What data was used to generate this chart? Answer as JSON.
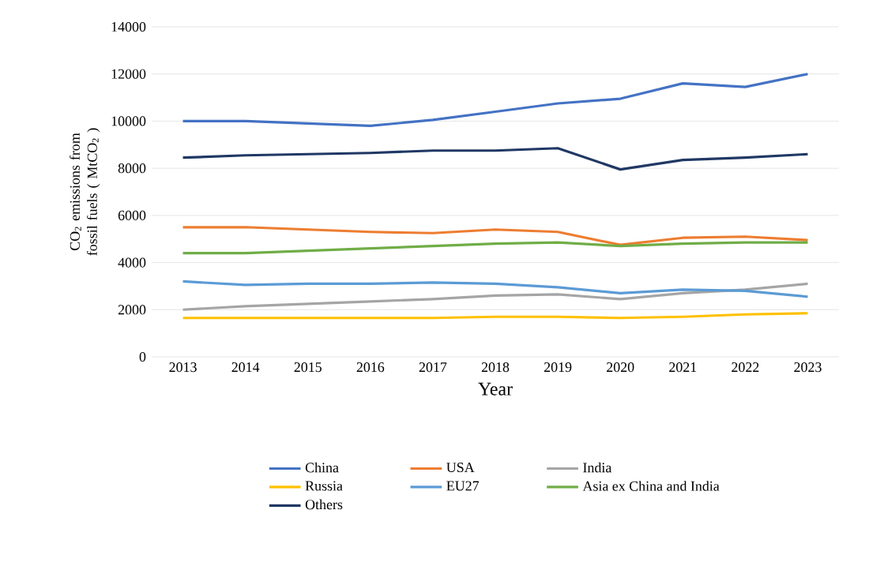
{
  "chart_data": {
    "type": "line",
    "xlabel": "Year",
    "ylabel": "CO$_{2}$ emissions from fossil fuels ( MtCO$_{2}$ )",
    "categories": [
      "2013",
      "2014",
      "2015",
      "2016",
      "2017",
      "2018",
      "2019",
      "2020",
      "2021",
      "2022",
      "2023"
    ],
    "ylim": [
      0,
      14000
    ],
    "yticks": [
      0,
      2000,
      4000,
      6000,
      8000,
      10000,
      12000,
      14000
    ],
    "grid": "y",
    "legend": "bottom",
    "marker": "none",
    "line_style": "solid",
    "series": [
      {
        "name": "China",
        "color": "#4472c4",
        "values": [
          10000,
          10000,
          9900,
          9800,
          10050,
          10400,
          10750,
          10950,
          11600,
          11450,
          12000
        ]
      },
      {
        "name": "USA",
        "color": "#ed7d31",
        "values": [
          5500,
          5500,
          5400,
          5300,
          5250,
          5400,
          5300,
          4750,
          5050,
          5100,
          4950
        ]
      },
      {
        "name": "India",
        "color": "#a5a5a5",
        "values": [
          2000,
          2150,
          2250,
          2350,
          2450,
          2600,
          2650,
          2450,
          2700,
          2850,
          3100
        ]
      },
      {
        "name": "Russia",
        "color": "#ffc000",
        "values": [
          1650,
          1650,
          1650,
          1650,
          1650,
          1700,
          1700,
          1650,
          1700,
          1800,
          1850
        ]
      },
      {
        "name": "EU27",
        "color": "#5b9bd5",
        "values": [
          3200,
          3050,
          3100,
          3100,
          3150,
          3100,
          2950,
          2700,
          2850,
          2800,
          2550
        ]
      },
      {
        "name": "Asia ex China and India",
        "color": "#70ad47",
        "values": [
          4400,
          4400,
          4500,
          4600,
          4700,
          4800,
          4850,
          4700,
          4800,
          4850,
          4850
        ]
      },
      {
        "name": "Others",
        "color": "#203864",
        "values": [
          8450,
          8550,
          8600,
          8650,
          8750,
          8750,
          8850,
          7950,
          8350,
          8450,
          8600
        ]
      }
    ]
  }
}
